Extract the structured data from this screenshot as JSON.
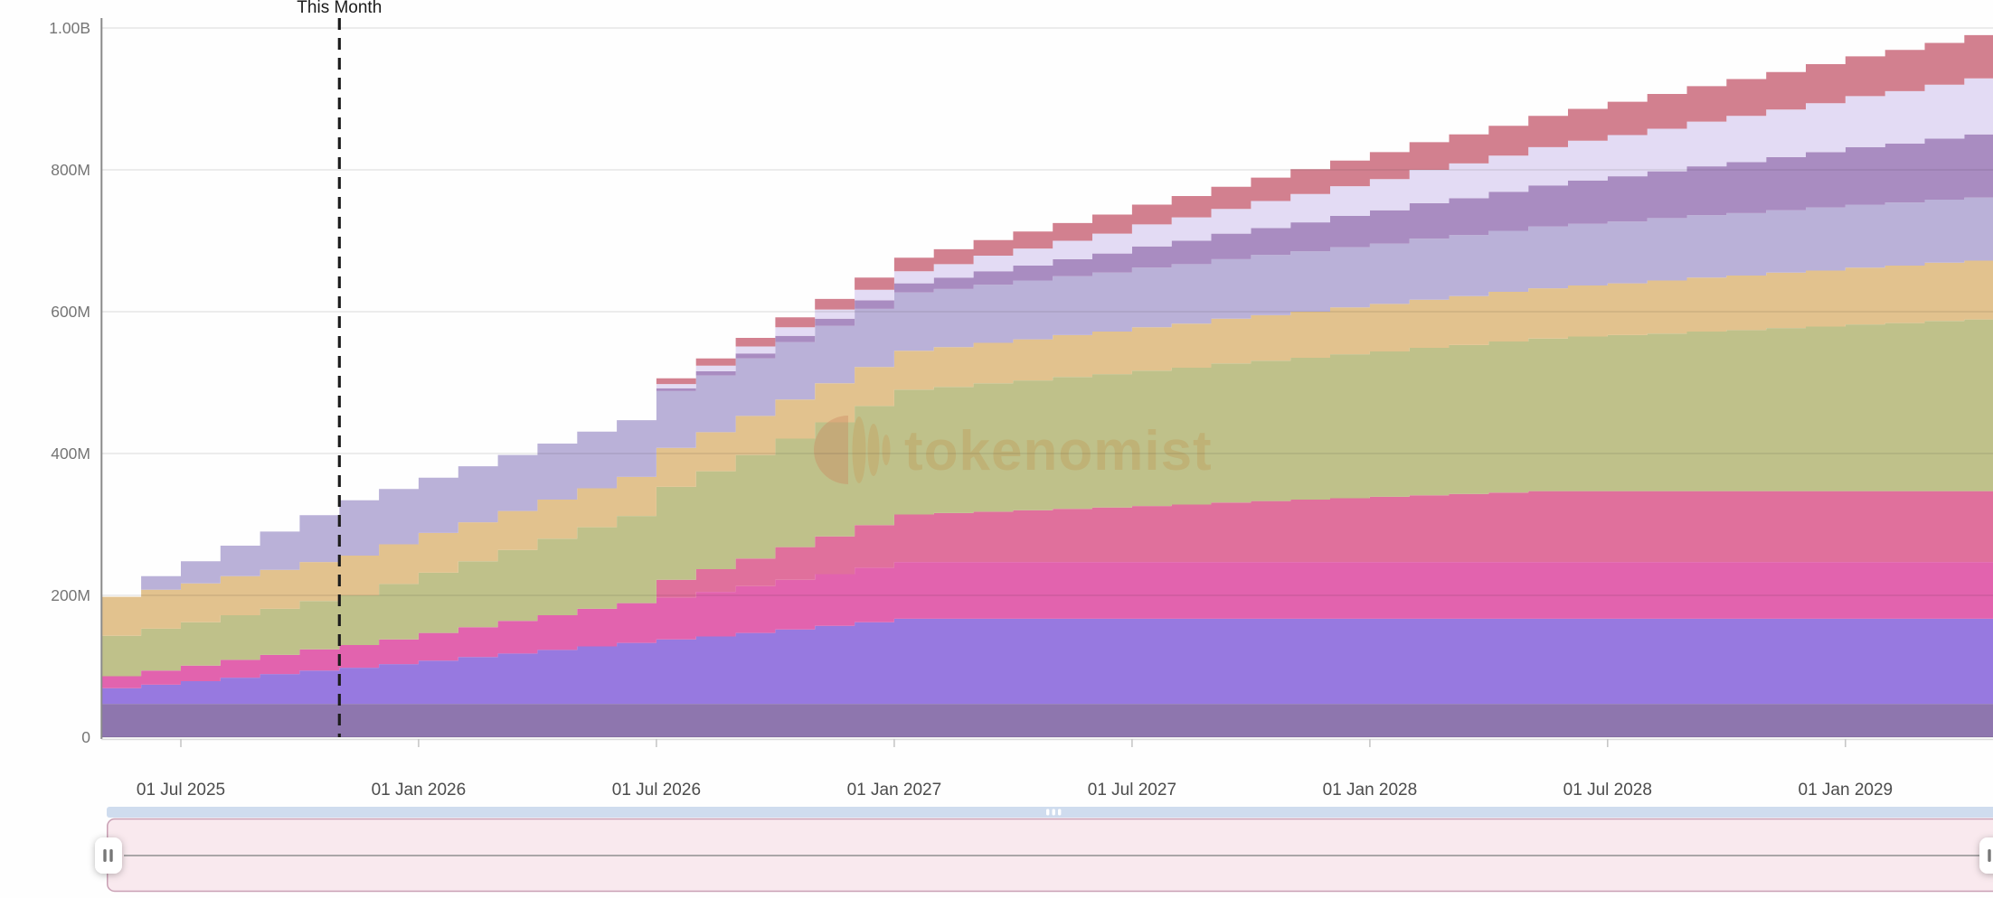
{
  "chart": {
    "this_month_label": "This Month",
    "watermark_text": "tokenomist",
    "y_axis": {
      "ticks": [
        {
          "label": "1.00B",
          "value": 1000
        },
        {
          "label": "800M",
          "value": 800
        },
        {
          "label": "600M",
          "value": 600
        },
        {
          "label": "400M",
          "value": 400
        },
        {
          "label": "200M",
          "value": 200
        },
        {
          "label": "0",
          "value": 0
        }
      ]
    },
    "x_axis": {
      "ticks": [
        {
          "label": "01 Jul 2025",
          "month_index": 2
        },
        {
          "label": "01 Jan 2026",
          "month_index": 8
        },
        {
          "label": "01 Jul 2026",
          "month_index": 14
        },
        {
          "label": "01 Jan 2027",
          "month_index": 20
        },
        {
          "label": "01 Jul 2027",
          "month_index": 26
        },
        {
          "label": "01 Jan 2028",
          "month_index": 32
        },
        {
          "label": "01 Jul 2028",
          "month_index": 38
        },
        {
          "label": "01 Jan 2029",
          "month_index": 44
        }
      ]
    },
    "annotation": {
      "label": "This Month",
      "month_index": 6
    }
  },
  "chart_data": {
    "type": "area",
    "stacked": true,
    "step": true,
    "title": "",
    "xlabel": "",
    "ylabel": "",
    "unit": "M tokens",
    "ylim": [
      0,
      1000
    ],
    "grid": true,
    "legend_position": "none",
    "x": [
      "May 2025",
      "Jun 2025",
      "Jul 2025",
      "Aug 2025",
      "Sep 2025",
      "Oct 2025",
      "Nov 2025",
      "Dec 2025",
      "Jan 2026",
      "Feb 2026",
      "Mar 2026",
      "Apr 2026",
      "May 2026",
      "Jun 2026",
      "Jul 2026",
      "Aug 2026",
      "Sep 2026",
      "Oct 2026",
      "Nov 2026",
      "Dec 2026",
      "Jan 2027",
      "Feb 2027",
      "Mar 2027",
      "Apr 2027",
      "May 2027",
      "Jun 2027",
      "Jul 2027",
      "Aug 2027",
      "Sep 2027",
      "Oct 2027",
      "Nov 2027",
      "Dec 2027",
      "Jan 2028",
      "Feb 2028",
      "Mar 2028",
      "Apr 2028",
      "May 2028",
      "Jun 2028",
      "Jul 2028",
      "Aug 2028",
      "Sep 2028",
      "Oct 2028",
      "Nov 2028",
      "Dec 2028",
      "Jan 2029",
      "Feb 2029",
      "Mar 2029",
      "Apr 2029"
    ],
    "series": [
      {
        "name": "purple",
        "color": "#8e76ae",
        "values": [
          47,
          47,
          47,
          47,
          47,
          47,
          47,
          47,
          47,
          47,
          47,
          47,
          47,
          47,
          47,
          47,
          47,
          47,
          47,
          47,
          47,
          47,
          47,
          47,
          47,
          47,
          47,
          47,
          47,
          47,
          47,
          47,
          47,
          47,
          47,
          47,
          47,
          47,
          47,
          47,
          47,
          47,
          47,
          47,
          47,
          47,
          47,
          47
        ]
      },
      {
        "name": "violet",
        "color": "#9779e0",
        "values": [
          22,
          27,
          32,
          37,
          42,
          47,
          51,
          56,
          61,
          66,
          71,
          76,
          81,
          86,
          91,
          95,
          100,
          105,
          110,
          115,
          120,
          120,
          120,
          120,
          120,
          120,
          120,
          120,
          120,
          120,
          120,
          120,
          120,
          120,
          120,
          120,
          120,
          120,
          120,
          120,
          120,
          120,
          120,
          120,
          120,
          120,
          120,
          120
        ]
      },
      {
        "name": "magenta",
        "color": "#e263ae",
        "values": [
          17,
          20,
          22,
          25,
          27,
          30,
          32,
          35,
          39,
          42,
          46,
          49,
          53,
          56,
          59,
          63,
          66,
          70,
          73,
          77,
          80,
          80,
          80,
          80,
          80,
          80,
          80,
          80,
          80,
          80,
          80,
          80,
          80,
          80,
          80,
          80,
          80,
          80,
          80,
          80,
          80,
          80,
          80,
          80,
          80,
          80,
          80,
          80
        ]
      },
      {
        "name": "rose",
        "color": "#e0709c",
        "values": [
          0,
          0,
          0,
          0,
          0,
          0,
          0,
          0,
          0,
          0,
          0,
          0,
          0,
          0,
          25,
          32,
          39,
          46,
          53,
          60,
          67,
          69,
          71,
          73,
          75,
          77,
          79,
          81,
          84,
          86,
          88,
          90,
          92,
          94,
          96,
          98,
          100,
          100,
          100,
          100,
          100,
          100,
          100,
          100,
          100,
          100,
          100,
          100
        ]
      },
      {
        "name": "olive",
        "color": "#bfc18a",
        "values": [
          57,
          59,
          61,
          63,
          65,
          68,
          70,
          78,
          85,
          93,
          100,
          108,
          115,
          123,
          131,
          138,
          146,
          153,
          161,
          168,
          176,
          178,
          181,
          183,
          186,
          188,
          191,
          193,
          196,
          198,
          200,
          203,
          205,
          208,
          210,
          213,
          215,
          218,
          220,
          222,
          225,
          227,
          230,
          232,
          235,
          237,
          240,
          242
        ]
      },
      {
        "name": "tan",
        "color": "#e2c28e",
        "values": [
          55,
          55,
          55,
          55,
          55,
          55,
          56,
          56,
          56,
          55,
          55,
          55,
          55,
          55,
          55,
          55,
          55,
          55,
          55,
          55,
          55,
          56,
          57,
          58,
          59,
          60,
          61,
          62,
          63,
          64,
          65,
          66,
          67,
          68,
          69,
          70,
          71,
          72,
          73,
          75,
          76,
          77,
          78,
          79,
          80,
          81,
          82,
          83
        ]
      },
      {
        "name": "periwinkle",
        "color": "#bab1d8",
        "values": [
          0,
          19,
          31,
          43,
          54,
          66,
          78,
          78,
          78,
          79,
          79,
          79,
          80,
          80,
          80,
          80,
          81,
          81,
          81,
          82,
          82,
          82,
          82,
          83,
          83,
          83,
          84,
          84,
          84,
          85,
          85,
          85,
          85,
          86,
          86,
          86,
          87,
          87,
          87,
          88,
          88,
          88,
          88,
          89,
          89,
          89,
          89,
          89
        ]
      },
      {
        "name": "mauve",
        "color": "#a98cc1",
        "values": [
          0,
          0,
          0,
          0,
          0,
          0,
          0,
          0,
          0,
          0,
          0,
          0,
          0,
          0,
          4,
          6,
          7,
          9,
          10,
          12,
          13,
          16,
          19,
          21,
          24,
          27,
          30,
          33,
          36,
          38,
          41,
          44,
          47,
          50,
          52,
          55,
          58,
          61,
          64,
          66,
          69,
          72,
          75,
          78,
          81,
          83,
          86,
          89
        ]
      },
      {
        "name": "lavender",
        "color": "#e3dbf4",
        "values": [
          0,
          0,
          0,
          0,
          0,
          0,
          0,
          0,
          0,
          0,
          0,
          0,
          0,
          0,
          6,
          8,
          10,
          12,
          13,
          15,
          17,
          19,
          22,
          24,
          26,
          28,
          31,
          33,
          35,
          38,
          40,
          42,
          44,
          47,
          49,
          51,
          54,
          56,
          58,
          60,
          63,
          65,
          67,
          69,
          72,
          74,
          76,
          79
        ]
      },
      {
        "name": "red",
        "color": "#d2808f",
        "values": [
          0,
          0,
          0,
          0,
          0,
          0,
          0,
          0,
          0,
          0,
          0,
          0,
          0,
          0,
          8,
          10,
          12,
          14,
          15,
          17,
          19,
          21,
          22,
          24,
          25,
          27,
          28,
          30,
          31,
          33,
          35,
          36,
          38,
          39,
          41,
          42,
          44,
          45,
          47,
          49,
          50,
          52,
          53,
          55,
          56,
          58,
          59,
          61
        ]
      }
    ],
    "annotations": [
      {
        "label": "This Month",
        "x": "Nov 2025"
      }
    ]
  },
  "slider": {
    "track_color": "#cfdcee",
    "range_fill": "#f7e4ea",
    "range_border": "#c9a0b4",
    "baseline_color": "#8f8f8f",
    "left_handle_icon": "grip-bars",
    "right_handle_icon": "grip-bars",
    "thumb_grip_icon": "grip-bars"
  }
}
